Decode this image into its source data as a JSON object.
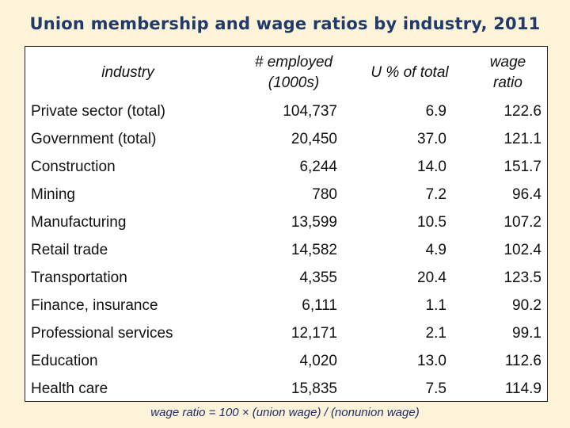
{
  "title": "Union membership and wage ratios by industry, 2011",
  "headers": {
    "industry": "industry",
    "employed_line1": "# employed",
    "employed_line2": "(1000s)",
    "union_pct": "U % of total",
    "wage_line1": "wage",
    "wage_line2": "ratio"
  },
  "rows": [
    {
      "industry": "Private sector (total)",
      "employed": "104,737",
      "union_pct": "6.9",
      "wage_ratio": "122.6"
    },
    {
      "industry": "Government (total)",
      "employed": "20,450",
      "union_pct": "37.0",
      "wage_ratio": "121.1"
    },
    {
      "industry": "Construction",
      "employed": "6,244",
      "union_pct": "14.0",
      "wage_ratio": "151.7"
    },
    {
      "industry": "Mining",
      "employed": "780",
      "union_pct": "7.2",
      "wage_ratio": "96.4"
    },
    {
      "industry": "Manufacturing",
      "employed": "13,599",
      "union_pct": "10.5",
      "wage_ratio": "107.2"
    },
    {
      "industry": "Retail trade",
      "employed": "14,582",
      "union_pct": "4.9",
      "wage_ratio": "102.4"
    },
    {
      "industry": "Transportation",
      "employed": "4,355",
      "union_pct": "20.4",
      "wage_ratio": "123.5"
    },
    {
      "industry": "Finance, insurance",
      "employed": "6,111",
      "union_pct": "1.1",
      "wage_ratio": "90.2"
    },
    {
      "industry": "Professional services",
      "employed": "12,171",
      "union_pct": "2.1",
      "wage_ratio": "99.1"
    },
    {
      "industry": "Education",
      "employed": "4,020",
      "union_pct": "13.0",
      "wage_ratio": "112.6"
    },
    {
      "industry": "Health care",
      "employed": "15,835",
      "union_pct": "7.5",
      "wage_ratio": "114.9"
    }
  ],
  "footnote": "wage ratio = 100 × (union wage) / (nonunion wage)"
}
